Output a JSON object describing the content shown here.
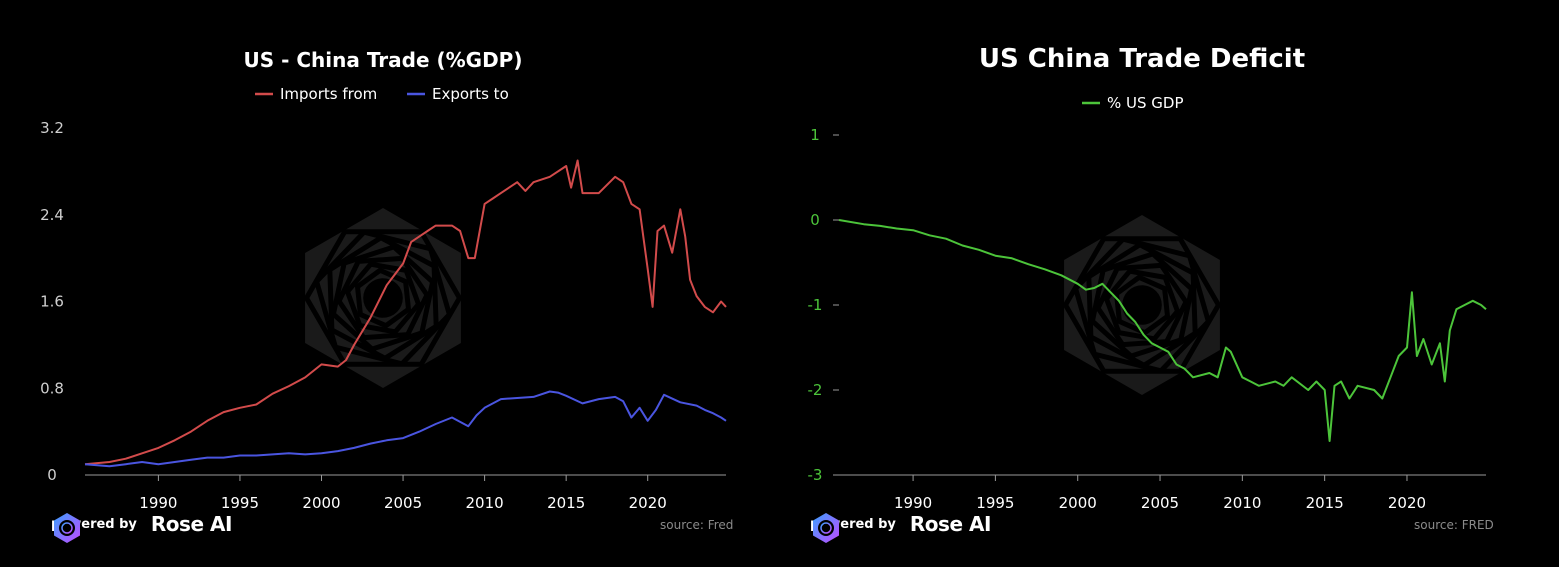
{
  "colors": {
    "background": "#000000",
    "imports": "#d24b4b",
    "exports": "#4a55e0",
    "deficit": "#4cc43a",
    "axis_text_left": "#cfcfcf",
    "axis_text_right": "#4cc43a"
  },
  "left": {
    "powered_by": "powered by",
    "brand": "Rose AI",
    "source": "source: Fred",
    "logo_icon": "rose-ai-logo-icon"
  },
  "right": {
    "powered_by": "powered by",
    "brand": "Rose AI",
    "source": "source: FRED",
    "logo_icon": "rose-ai-logo-icon"
  },
  "chart_data": [
    {
      "type": "line",
      "title": "US - China Trade (%GDP)",
      "xlabel": "",
      "ylabel": "",
      "xlim": [
        1985.5,
        2024.8
      ],
      "ylim": [
        0,
        3.2
      ],
      "xticks": [
        1990,
        1995,
        2000,
        2005,
        2010,
        2015,
        2020
      ],
      "yticks": [
        0,
        0.8,
        1.6,
        2.4,
        3.2
      ],
      "ytick_labels": [
        "0",
        "0.8",
        "1.6",
        "2.4",
        "3.2"
      ],
      "grid": false,
      "legend_position": "top-center",
      "series": [
        {
          "name": "Imports from",
          "color": "#d24b4b",
          "x": [
            1985.5,
            1987,
            1988,
            1989,
            1990,
            1991,
            1992,
            1993,
            1994,
            1995,
            1996,
            1997,
            1998,
            1999,
            2000,
            2001,
            2001.5,
            2002,
            2003,
            2004,
            2004.5,
            2005,
            2005.5,
            2006,
            2006.5,
            2007,
            2008,
            2008.5,
            2009,
            2009.4,
            2010,
            2010.5,
            2011,
            2012,
            2012.5,
            2013,
            2014,
            2015,
            2015.3,
            2015.7,
            2016,
            2016.5,
            2017,
            2018,
            2018.5,
            2019,
            2019.5,
            2020,
            2020.3,
            2020.6,
            2021,
            2021.5,
            2022,
            2022.3,
            2022.6,
            2023,
            2023.5,
            2024,
            2024.5,
            2024.8
          ],
          "y": [
            0.1,
            0.12,
            0.15,
            0.2,
            0.25,
            0.32,
            0.4,
            0.5,
            0.58,
            0.62,
            0.65,
            0.75,
            0.82,
            0.9,
            1.02,
            1.0,
            1.06,
            1.2,
            1.45,
            1.75,
            1.85,
            1.95,
            2.15,
            2.2,
            2.25,
            2.3,
            2.3,
            2.25,
            2.0,
            2.0,
            2.5,
            2.55,
            2.6,
            2.7,
            2.62,
            2.7,
            2.75,
            2.85,
            2.65,
            2.9,
            2.6,
            2.6,
            2.6,
            2.75,
            2.7,
            2.5,
            2.45,
            1.9,
            1.55,
            2.25,
            2.3,
            2.05,
            2.45,
            2.2,
            1.8,
            1.65,
            1.55,
            1.5,
            1.6,
            1.55
          ]
        },
        {
          "name": "Exports to",
          "color": "#4a55e0",
          "x": [
            1985.5,
            1987,
            1988,
            1989,
            1990,
            1991,
            1992,
            1993,
            1994,
            1995,
            1996,
            1997,
            1998,
            1999,
            2000,
            2001,
            2002,
            2003,
            2004,
            2005,
            2006,
            2007,
            2008,
            2009,
            2009.5,
            2010,
            2011,
            2012,
            2013,
            2014,
            2014.5,
            2015,
            2016,
            2017,
            2018,
            2018.5,
            2019,
            2019.5,
            2020,
            2020.5,
            2021,
            2022,
            2023,
            2023.5,
            2024,
            2024.5,
            2024.8
          ],
          "y": [
            0.1,
            0.08,
            0.1,
            0.12,
            0.1,
            0.12,
            0.14,
            0.16,
            0.16,
            0.18,
            0.18,
            0.19,
            0.2,
            0.19,
            0.2,
            0.22,
            0.25,
            0.29,
            0.32,
            0.34,
            0.4,
            0.47,
            0.53,
            0.45,
            0.55,
            0.62,
            0.7,
            0.71,
            0.72,
            0.77,
            0.76,
            0.73,
            0.66,
            0.7,
            0.72,
            0.68,
            0.53,
            0.62,
            0.5,
            0.6,
            0.74,
            0.67,
            0.64,
            0.6,
            0.57,
            0.53,
            0.5
          ]
        }
      ]
    },
    {
      "type": "line",
      "title": "US China Trade Deficit",
      "xlabel": "",
      "ylabel": "",
      "xlim": [
        1985.5,
        2024.8
      ],
      "ylim": [
        -3,
        1
      ],
      "xticks": [
        1990,
        1995,
        2000,
        2005,
        2010,
        2015,
        2020
      ],
      "yticks": [
        -3,
        -2,
        -1,
        0,
        1
      ],
      "ytick_labels": [
        "-3",
        "-2",
        "-1",
        "0",
        "1"
      ],
      "grid": false,
      "legend_position": "top-center",
      "series": [
        {
          "name": "% US GDP",
          "color": "#4cc43a",
          "x": [
            1985.5,
            1987,
            1988,
            1989,
            1990,
            1991,
            1992,
            1993,
            1994,
            1995,
            1996,
            1997,
            1998,
            1999,
            2000,
            2000.5,
            2001,
            2001.5,
            2002,
            2002.5,
            2003,
            2003.5,
            2004,
            2004.5,
            2005,
            2005.5,
            2006,
            2006.5,
            2007,
            2008,
            2008.5,
            2009,
            2009.3,
            2010,
            2010.5,
            2011,
            2012,
            2012.5,
            2013,
            2014,
            2014.5,
            2015,
            2015.3,
            2015.6,
            2016,
            2016.5,
            2017,
            2018,
            2018.5,
            2019,
            2019.5,
            2020,
            2020.3,
            2020.6,
            2021,
            2021.5,
            2022,
            2022.3,
            2022.6,
            2023,
            2023.5,
            2024,
            2024.5,
            2024.8
          ],
          "y": [
            0,
            -0.05,
            -0.07,
            -0.1,
            -0.12,
            -0.18,
            -0.22,
            -0.3,
            -0.35,
            -0.42,
            -0.45,
            -0.52,
            -0.58,
            -0.65,
            -0.75,
            -0.82,
            -0.8,
            -0.75,
            -0.85,
            -0.95,
            -1.1,
            -1.2,
            -1.35,
            -1.45,
            -1.5,
            -1.55,
            -1.7,
            -1.75,
            -1.85,
            -1.8,
            -1.85,
            -1.5,
            -1.55,
            -1.85,
            -1.9,
            -1.95,
            -1.9,
            -1.95,
            -1.85,
            -2.0,
            -1.9,
            -2.0,
            -2.6,
            -1.95,
            -1.9,
            -2.1,
            -1.95,
            -2.0,
            -2.1,
            -1.85,
            -1.6,
            -1.5,
            -0.85,
            -1.6,
            -1.4,
            -1.7,
            -1.45,
            -1.9,
            -1.3,
            -1.05,
            -1.0,
            -0.95,
            -1.0,
            -1.05
          ]
        }
      ]
    }
  ]
}
